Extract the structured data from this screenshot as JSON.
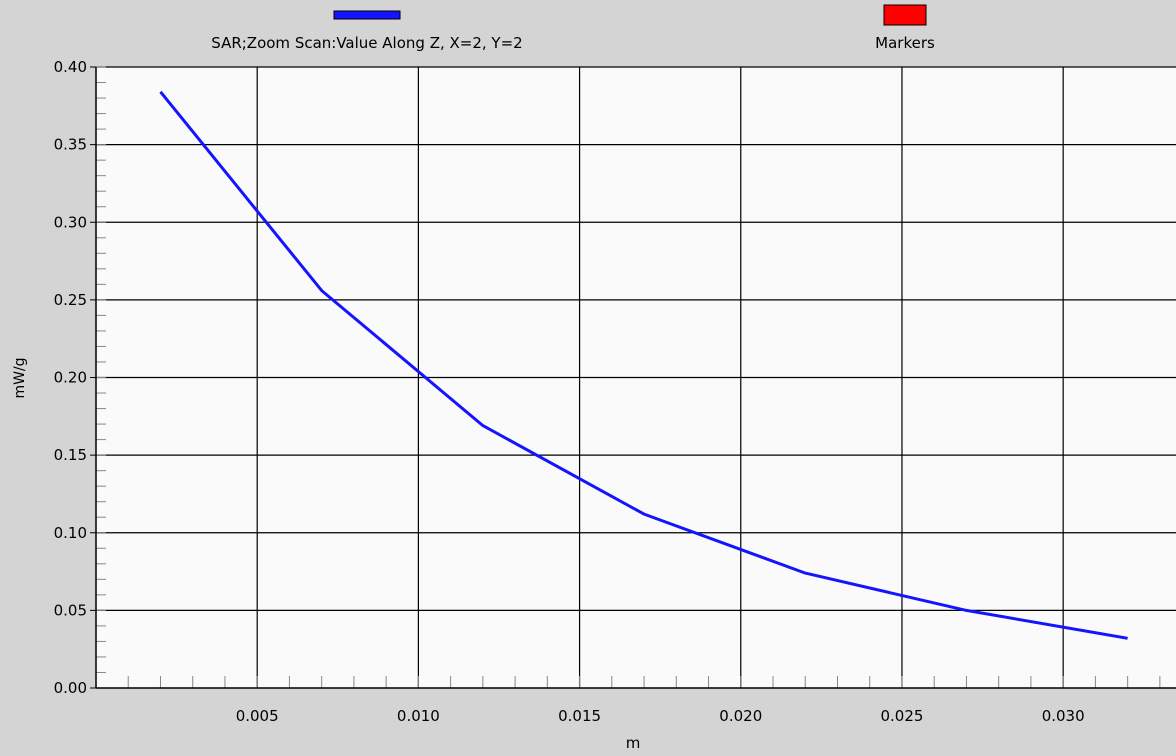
{
  "colors": {
    "background": "#d4d4d4",
    "plot_background": "#fafafa",
    "series_line": "#1414ff",
    "marker_swatch": "#ff0000",
    "grid": "#000000"
  },
  "chart_data": {
    "type": "line",
    "title": "",
    "xlabel": "m",
    "ylabel": "mW/g",
    "xlim": [
      0.0,
      0.0335
    ],
    "ylim": [
      0.0,
      0.4
    ],
    "grid": true,
    "legend_position": "top",
    "x_ticks": [
      0.005,
      0.01,
      0.015,
      0.02,
      0.025,
      0.03
    ],
    "x_tick_labels": [
      "0.005",
      "0.010",
      "0.015",
      "0.020",
      "0.025",
      "0.030"
    ],
    "y_ticks": [
      0.0,
      0.05,
      0.1,
      0.15,
      0.2,
      0.25,
      0.3,
      0.35,
      0.4
    ],
    "y_tick_labels": [
      "0.00",
      "0.05",
      "0.10",
      "0.15",
      "0.20",
      "0.25",
      "0.30",
      "0.35",
      "0.40"
    ],
    "legend": [
      {
        "label": "SAR;Zoom Scan:Value Along Z, X=2, Y=2",
        "color": "#1414ff"
      },
      {
        "label": "Markers",
        "color": "#ff0000"
      }
    ],
    "series": [
      {
        "name": "SAR;Zoom Scan:Value Along Z, X=2, Y=2",
        "x": [
          0.002,
          0.007,
          0.012,
          0.017,
          0.022,
          0.027,
          0.032
        ],
        "y": [
          0.384,
          0.256,
          0.169,
          0.112,
          0.074,
          0.05,
          0.032
        ]
      }
    ]
  }
}
